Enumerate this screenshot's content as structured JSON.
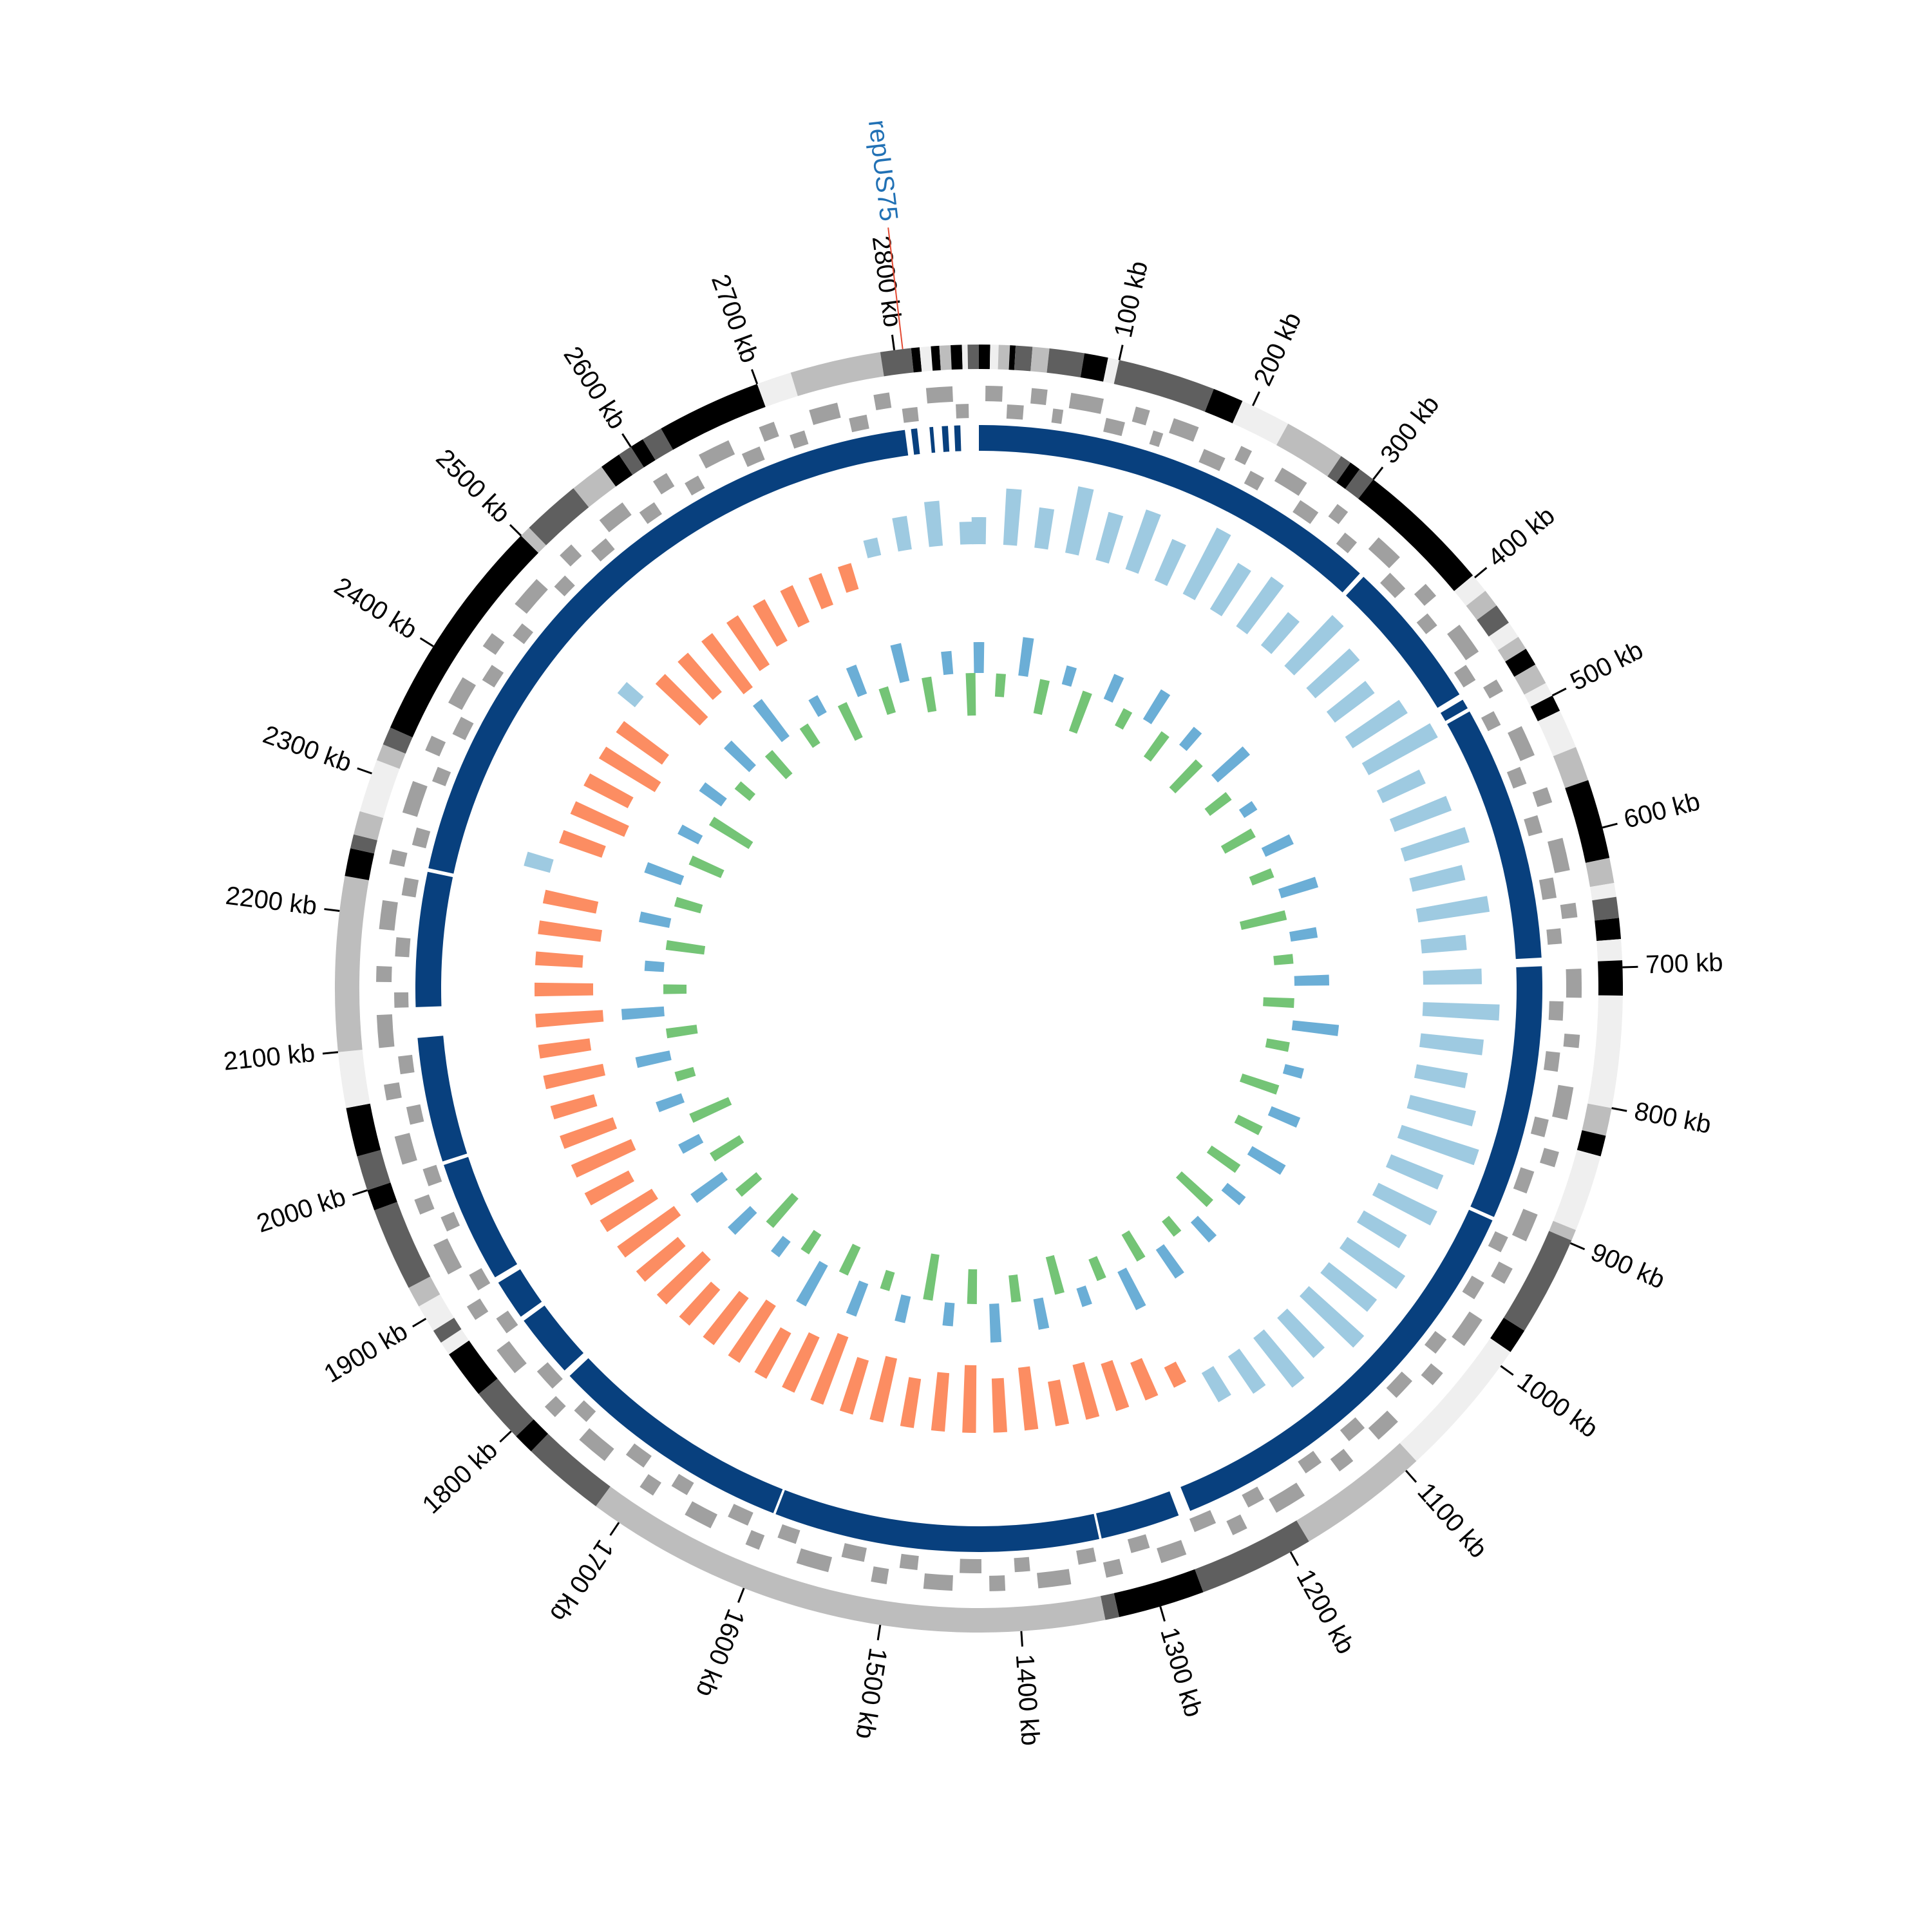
{
  "chart_data": {
    "type": "circos",
    "xlim": [
      0,
      2860
    ],
    "xticks": [
      {
        "value": 100,
        "label": "100 kb"
      },
      {
        "value": 200,
        "label": "200 kb"
      },
      {
        "value": 300,
        "label": "300 kb"
      },
      {
        "value": 400,
        "label": "400 kb"
      },
      {
        "value": 500,
        "label": "500 kb"
      },
      {
        "value": 600,
        "label": "600 kb"
      },
      {
        "value": 700,
        "label": "700 kb"
      },
      {
        "value": 800,
        "label": "800 kb"
      },
      {
        "value": 900,
        "label": "900 kb"
      },
      {
        "value": 1000,
        "label": "1000 kb"
      },
      {
        "value": 1100,
        "label": "1100 kb"
      },
      {
        "value": 1200,
        "label": "1200 kb"
      },
      {
        "value": 1300,
        "label": "1300 kb"
      },
      {
        "value": 1400,
        "label": "1400 kb"
      },
      {
        "value": 1500,
        "label": "1500 kb"
      },
      {
        "value": 1600,
        "label": "1600 kb"
      },
      {
        "value": 1700,
        "label": "1700 kb"
      },
      {
        "value": 1800,
        "label": "1800 kb"
      },
      {
        "value": 1900,
        "label": "1900 kb"
      },
      {
        "value": 2000,
        "label": "2000 kb"
      },
      {
        "value": 2100,
        "label": "2100 kb"
      },
      {
        "value": 2200,
        "label": "2200 kb"
      },
      {
        "value": 2300,
        "label": "2300 kb"
      },
      {
        "value": 2400,
        "label": "2400 kb"
      },
      {
        "value": 2500,
        "label": "2500 kb"
      },
      {
        "value": 2600,
        "label": "2600 kb"
      },
      {
        "value": 2700,
        "label": "2700 kb"
      },
      {
        "value": 2800,
        "label": "2800 kb"
      }
    ],
    "ideogram": [
      [
        0,
        8,
        "#000000"
      ],
      [
        8,
        14,
        "#efefef"
      ],
      [
        14,
        22,
        "#bdbdbd"
      ],
      [
        22,
        26,
        "#000000"
      ],
      [
        26,
        38,
        "#5f5f5f"
      ],
      [
        38,
        50,
        "#bdbdbd"
      ],
      [
        50,
        75,
        "#5f5f5f"
      ],
      [
        75,
        92,
        "#000000"
      ],
      [
        92,
        100,
        "#efefef"
      ],
      [
        100,
        170,
        "#5f5f5f"
      ],
      [
        170,
        192,
        "#000000"
      ],
      [
        192,
        228,
        "#efefef"
      ],
      [
        228,
        272,
        "#bdbdbd"
      ],
      [
        272,
        280,
        "#5f5f5f"
      ],
      [
        280,
        288,
        "#000000"
      ],
      [
        288,
        300,
        "#5f5f5f"
      ],
      [
        300,
        398,
        "#000000"
      ],
      [
        398,
        412,
        "#efefef"
      ],
      [
        412,
        425,
        "#bdbdbd"
      ],
      [
        425,
        440,
        "#5f5f5f"
      ],
      [
        440,
        452,
        "#efefef"
      ],
      [
        452,
        462,
        "#bdbdbd"
      ],
      [
        462,
        475,
        "#000000"
      ],
      [
        475,
        490,
        "#bdbdbd"
      ],
      [
        490,
        500,
        "#efefef"
      ],
      [
        500,
        512,
        "#000000"
      ],
      [
        512,
        540,
        "#efefef"
      ],
      [
        540,
        565,
        "#bdbdbd"
      ],
      [
        565,
        622,
        "#000000"
      ],
      [
        622,
        640,
        "#bdbdbd"
      ],
      [
        640,
        650,
        "#efefef"
      ],
      [
        650,
        665,
        "#5f5f5f"
      ],
      [
        665,
        680,
        "#000000"
      ],
      [
        680,
        695,
        "#efefef"
      ],
      [
        695,
        720,
        "#000000"
      ],
      [
        720,
        800,
        "#efefef"
      ],
      [
        800,
        820,
        "#bdbdbd"
      ],
      [
        820,
        835,
        "#000000"
      ],
      [
        835,
        890,
        "#efefef"
      ],
      [
        890,
        898,
        "#bdbdbd"
      ],
      [
        898,
        970,
        "#5f5f5f"
      ],
      [
        970,
        988,
        "#000000"
      ],
      [
        988,
        1090,
        "#efefef"
      ],
      [
        1090,
        1185,
        "#bdbdbd"
      ],
      [
        1185,
        1268,
        "#5f5f5f"
      ],
      [
        1268,
        1330,
        "#000000"
      ],
      [
        1330,
        1340,
        "#5f5f5f"
      ],
      [
        1340,
        1720,
        "#bdbdbd"
      ],
      [
        1720,
        1780,
        "#5f5f5f"
      ],
      [
        1780,
        1795,
        "#000000"
      ],
      [
        1795,
        1835,
        "#5f5f5f"
      ],
      [
        1835,
        1870,
        "#000000"
      ],
      [
        1870,
        1880,
        "#efefef"
      ],
      [
        1880,
        1890,
        "#5f5f5f"
      ],
      [
        1890,
        1910,
        "#efefef"
      ],
      [
        1910,
        1925,
        "#bdbdbd"
      ],
      [
        1925,
        1985,
        "#5f5f5f"
      ],
      [
        1985,
        2000,
        "#000000"
      ],
      [
        2000,
        2025,
        "#5f5f5f"
      ],
      [
        2025,
        2060,
        "#000000"
      ],
      [
        2060,
        2100,
        "#efefef"
      ],
      [
        2100,
        2225,
        "#bdbdbd"
      ],
      [
        2225,
        2245,
        "#000000"
      ],
      [
        2245,
        2255,
        "#5f5f5f"
      ],
      [
        2255,
        2272,
        "#bdbdbd"
      ],
      [
        2272,
        2310,
        "#efefef"
      ],
      [
        2310,
        2322,
        "#bdbdbd"
      ],
      [
        2322,
        2335,
        "#5f5f5f"
      ],
      [
        2335,
        2500,
        "#000000"
      ],
      [
        2500,
        2508,
        "#bdbdbd"
      ],
      [
        2508,
        2550,
        "#5f5f5f"
      ],
      [
        2550,
        2575,
        "#bdbdbd"
      ],
      [
        2575,
        2590,
        "#000000"
      ],
      [
        2590,
        2600,
        "#5f5f5f"
      ],
      [
        2600,
        2610,
        "#000000"
      ],
      [
        2610,
        2625,
        "#5f5f5f"
      ],
      [
        2625,
        2700,
        "#000000"
      ],
      [
        2700,
        2725,
        "#efefef"
      ],
      [
        2725,
        2790,
        "#bdbdbd"
      ],
      [
        2790,
        2812,
        "#5f5f5f"
      ],
      [
        2812,
        2818,
        "#000000"
      ],
      [
        2818,
        2826,
        "#efefef"
      ],
      [
        2826,
        2832,
        "#000000"
      ],
      [
        2832,
        2840,
        "#bdbdbd"
      ],
      [
        2840,
        2848,
        "#000000"
      ],
      [
        2848,
        2852,
        "#efefef"
      ],
      [
        2852,
        2860,
        "#5f5f5f"
      ]
    ],
    "genes": {
      "color": "#a0a0a0",
      "forward": [
        [
          5,
          18
        ],
        [
          40,
          52
        ],
        [
          70,
          95
        ],
        [
          120,
          131
        ],
        [
          150,
          170
        ],
        [
          205,
          214
        ],
        [
          240,
          262
        ],
        [
          290,
          300
        ],
        [
          330,
          352
        ],
        [
          380,
          392
        ],
        [
          420,
          445
        ],
        [
          470,
          480
        ],
        [
          510,
          534
        ],
        [
          560,
          572
        ],
        [
          600,
          625
        ],
        [
          650,
          661
        ],
        [
          700,
          722
        ],
        [
          750,
          760
        ],
        [
          790,
          815
        ],
        [
          840,
          852
        ],
        [
          890,
          912
        ],
        [
          935,
          948
        ],
        [
          980,
          1004
        ],
        [
          1030,
          1042
        ],
        [
          1080,
          1100
        ],
        [
          1125,
          1138
        ],
        [
          1170,
          1195
        ],
        [
          1220,
          1232
        ],
        [
          1270,
          1290
        ],
        [
          1320,
          1333
        ],
        [
          1360,
          1385
        ],
        [
          1410,
          1422
        ],
        [
          1450,
          1472
        ],
        [
          1500,
          1512
        ],
        [
          1545,
          1570
        ],
        [
          1600,
          1611
        ],
        [
          1640,
          1662
        ],
        [
          1690,
          1702
        ],
        [
          1735,
          1760
        ],
        [
          1785,
          1796
        ],
        [
          1830,
          1852
        ],
        [
          1880,
          1892
        ],
        [
          1920,
          1945
        ],
        [
          1970,
          1982
        ],
        [
          2010,
          2032
        ],
        [
          2060,
          2072
        ],
        [
          2100,
          2125
        ],
        [
          2150,
          2162
        ],
        [
          2190,
          2212
        ],
        [
          2240,
          2251
        ],
        [
          2280,
          2305
        ],
        [
          2330,
          2342
        ],
        [
          2370,
          2392
        ],
        [
          2420,
          2432
        ],
        [
          2460,
          2485
        ],
        [
          2510,
          2522
        ],
        [
          2550,
          2572
        ],
        [
          2600,
          2612
        ],
        [
          2640,
          2665
        ],
        [
          2690,
          2702
        ],
        [
          2730,
          2752
        ],
        [
          2780,
          2792
        ],
        [
          2820,
          2840
        ]
      ],
      "reverse": [
        [
          22,
          35
        ],
        [
          58,
          66
        ],
        [
          100,
          115
        ],
        [
          138,
          146
        ],
        [
          180,
          198
        ],
        [
          220,
          232
        ],
        [
          265,
          282
        ],
        [
          308,
          320
        ],
        [
          355,
          372
        ],
        [
          398,
          410
        ],
        [
          448,
          462
        ],
        [
          490,
          502
        ],
        [
          538,
          552
        ],
        [
          578,
          592
        ],
        [
          628,
          644
        ],
        [
          668,
          680
        ],
        [
          725,
          740
        ],
        [
          765,
          780
        ],
        [
          818,
          832
        ],
        [
          860,
          878
        ],
        [
          915,
          928
        ],
        [
          955,
          970
        ],
        [
          1008,
          1022
        ],
        [
          1050,
          1068
        ],
        [
          1102,
          1118
        ],
        [
          1145,
          1160
        ],
        [
          1198,
          1212
        ],
        [
          1240,
          1258
        ],
        [
          1295,
          1310
        ],
        [
          1338,
          1352
        ],
        [
          1390,
          1402
        ],
        [
          1428,
          1445
        ],
        [
          1478,
          1492
        ],
        [
          1520,
          1538
        ],
        [
          1575,
          1590
        ],
        [
          1615,
          1632
        ],
        [
          1668,
          1682
        ],
        [
          1708,
          1725
        ],
        [
          1765,
          1778
        ],
        [
          1802,
          1820
        ],
        [
          1858,
          1872
        ],
        [
          1898,
          1912
        ],
        [
          1950,
          1962
        ],
        [
          1988,
          2002
        ],
        [
          2038,
          2052
        ],
        [
          2078,
          2092
        ],
        [
          2130,
          2142
        ],
        [
          2170,
          2185
        ],
        [
          2218,
          2232
        ],
        [
          2258,
          2272
        ],
        [
          2310,
          2322
        ],
        [
          2350,
          2365
        ],
        [
          2398,
          2412
        ],
        [
          2440,
          2452
        ],
        [
          2490,
          2502
        ],
        [
          2530,
          2545
        ],
        [
          2578,
          2592
        ],
        [
          2620,
          2632
        ],
        [
          2670,
          2685
        ],
        [
          2710,
          2722
        ],
        [
          2758,
          2772
        ],
        [
          2800,
          2812
        ],
        [
          2842,
          2852
        ]
      ]
    },
    "contigs": {
      "color": "#08407e",
      "segments": [
        [
          0,
          338
        ],
        [
          342,
          465
        ],
        [
          470,
          478
        ],
        [
          481,
          690
        ],
        [
          697,
          905
        ],
        [
          908,
          1255
        ],
        [
          1265,
          1330
        ],
        [
          1332,
          1598
        ],
        [
          1600,
          1800
        ],
        [
          1806,
          1858
        ],
        [
          1862,
          1895
        ],
        [
          1900,
          2000
        ],
        [
          2003,
          2105
        ],
        [
          2130,
          2240
        ],
        [
          2243,
          2800
        ],
        [
          2805,
          2810
        ],
        [
          2820,
          2823
        ],
        [
          2830,
          2835
        ],
        [
          2840,
          2845
        ]
      ]
    },
    "x": [
      0,
      32,
      64,
      96,
      128,
      160,
      192,
      224,
      256,
      288,
      320,
      352,
      384,
      416,
      448,
      480,
      512,
      544,
      576,
      608,
      640,
      672,
      704,
      736,
      768,
      800,
      832,
      864,
      896,
      928,
      960,
      992,
      1024,
      1056,
      1088,
      1120,
      1152,
      1184,
      1216,
      1248,
      1280,
      1312,
      1344,
      1376,
      1408,
      1440,
      1472,
      1504,
      1536,
      1568,
      1600,
      1632,
      1664,
      1696,
      1728,
      1760,
      1792,
      1824,
      1856,
      1888,
      1920,
      1952,
      1984,
      2016,
      2048,
      2080,
      2112,
      2144,
      2176,
      2208,
      2240,
      2272,
      2304,
      2336,
      2368,
      2400,
      2432,
      2464,
      2496,
      2528,
      2560,
      2592,
      2624,
      2656,
      2688,
      2720,
      2752,
      2784,
      2816,
      2848
    ],
    "tracks": [
      {
        "positive_color": "#9ecae1",
        "negative_color": "#fc8d62",
        "ylim": [
          -0.4,
          0.4
        ],
        "values": [
          0.12,
          0.25,
          0.18,
          0.3,
          0.22,
          0.28,
          0.2,
          0.33,
          0.24,
          0.27,
          0.19,
          0.31,
          0.26,
          0.22,
          0.29,
          0.35,
          0.21,
          0.27,
          0.3,
          0.24,
          0.32,
          0.2,
          0.26,
          0.34,
          0.28,
          0.23,
          0.3,
          0.36,
          0.25,
          0.29,
          0.22,
          0.31,
          0.27,
          0.33,
          0.24,
          0.28,
          0.2,
          0.15,
          -0.1,
          -0.18,
          -0.22,
          -0.25,
          -0.2,
          -0.28,
          -0.24,
          -0.3,
          -0.26,
          -0.22,
          -0.29,
          -0.25,
          -0.32,
          -0.27,
          -0.23,
          -0.3,
          -0.26,
          -0.21,
          -0.28,
          -0.24,
          -0.31,
          -0.27,
          -0.22,
          -0.29,
          -0.25,
          -0.2,
          -0.27,
          -0.23,
          -0.3,
          -0.26,
          -0.21,
          -0.28,
          -0.24,
          0.12,
          -0.2,
          -0.26,
          -0.22,
          -0.29,
          -0.25,
          0.1,
          -0.27,
          -0.23,
          -0.3,
          -0.26,
          -0.21,
          -0.18,
          -0.15,
          -0.12,
          0.08,
          0.15,
          0.2,
          0.1
        ]
      },
      {
        "positive_color": "#6baed6",
        "negative_color": "#74c476",
        "ylim": [
          -0.15,
          0.15
        ],
        "values": [
          0.08,
          -0.06,
          0.1,
          -0.09,
          0.05,
          -0.11,
          0.07,
          -0.05,
          0.09,
          -0.08,
          0.06,
          -0.1,
          0.11,
          -0.07,
          0.04,
          -0.09,
          0.08,
          -0.06,
          0.1,
          -0.12,
          0.07,
          -0.05,
          0.09,
          -0.08,
          0.12,
          -0.06,
          0.05,
          -0.1,
          0.08,
          -0.07,
          0.1,
          -0.09,
          0.06,
          -0.11,
          0.07,
          -0.05,
          0.09,
          -0.08,
          0.11,
          -0.06,
          0.05,
          -0.1,
          0.08,
          -0.07,
          0.1,
          -0.09,
          0.06,
          -0.12,
          0.07,
          -0.05,
          0.09,
          -0.08,
          0.12,
          -0.06,
          0.05,
          -0.1,
          0.08,
          -0.07,
          0.1,
          -0.09,
          0.06,
          -0.11,
          0.07,
          -0.05,
          0.09,
          -0.08,
          0.11,
          -0.06,
          0.05,
          -0.1,
          0.08,
          -0.07,
          0.1,
          -0.09,
          0.06,
          -0.12,
          0.07,
          -0.05,
          0.09,
          -0.08,
          0.12,
          -0.06,
          0.05,
          -0.1,
          0.08,
          -0.07,
          0.1,
          -0.09,
          0.06,
          -0.11
        ]
      }
    ],
    "annotation": {
      "x": 2806,
      "label": "repUS75",
      "color": "#2171b5",
      "line_color": "#e34a33"
    }
  }
}
